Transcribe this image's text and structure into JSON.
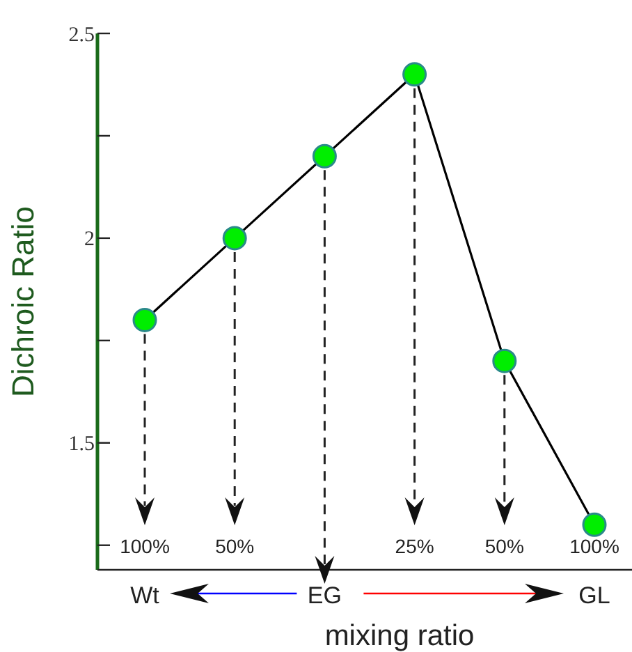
{
  "chart_data": {
    "type": "line",
    "xlabel": "mixing ratio",
    "ylabel": "Dichroic Ratio",
    "categories": [
      "100%",
      "50%",
      null,
      "25%",
      "50%",
      "100%"
    ],
    "series": [
      {
        "color": "#000000",
        "values": [
          1.8,
          2.0,
          2.2,
          2.4,
          1.7,
          1.3
        ]
      }
    ],
    "ylim": [
      1.19,
      2.5
    ],
    "yticks": [
      {
        "value": 1.25,
        "label": null
      },
      1.5,
      {
        "value": 1.75,
        "label": null
      },
      2,
      {
        "value": 2.25,
        "label": null
      },
      2.5
    ],
    "marker": "circle",
    "line_style": "solid",
    "annotations": [
      "Wt",
      "EG",
      "GL"
    ]
  }
}
